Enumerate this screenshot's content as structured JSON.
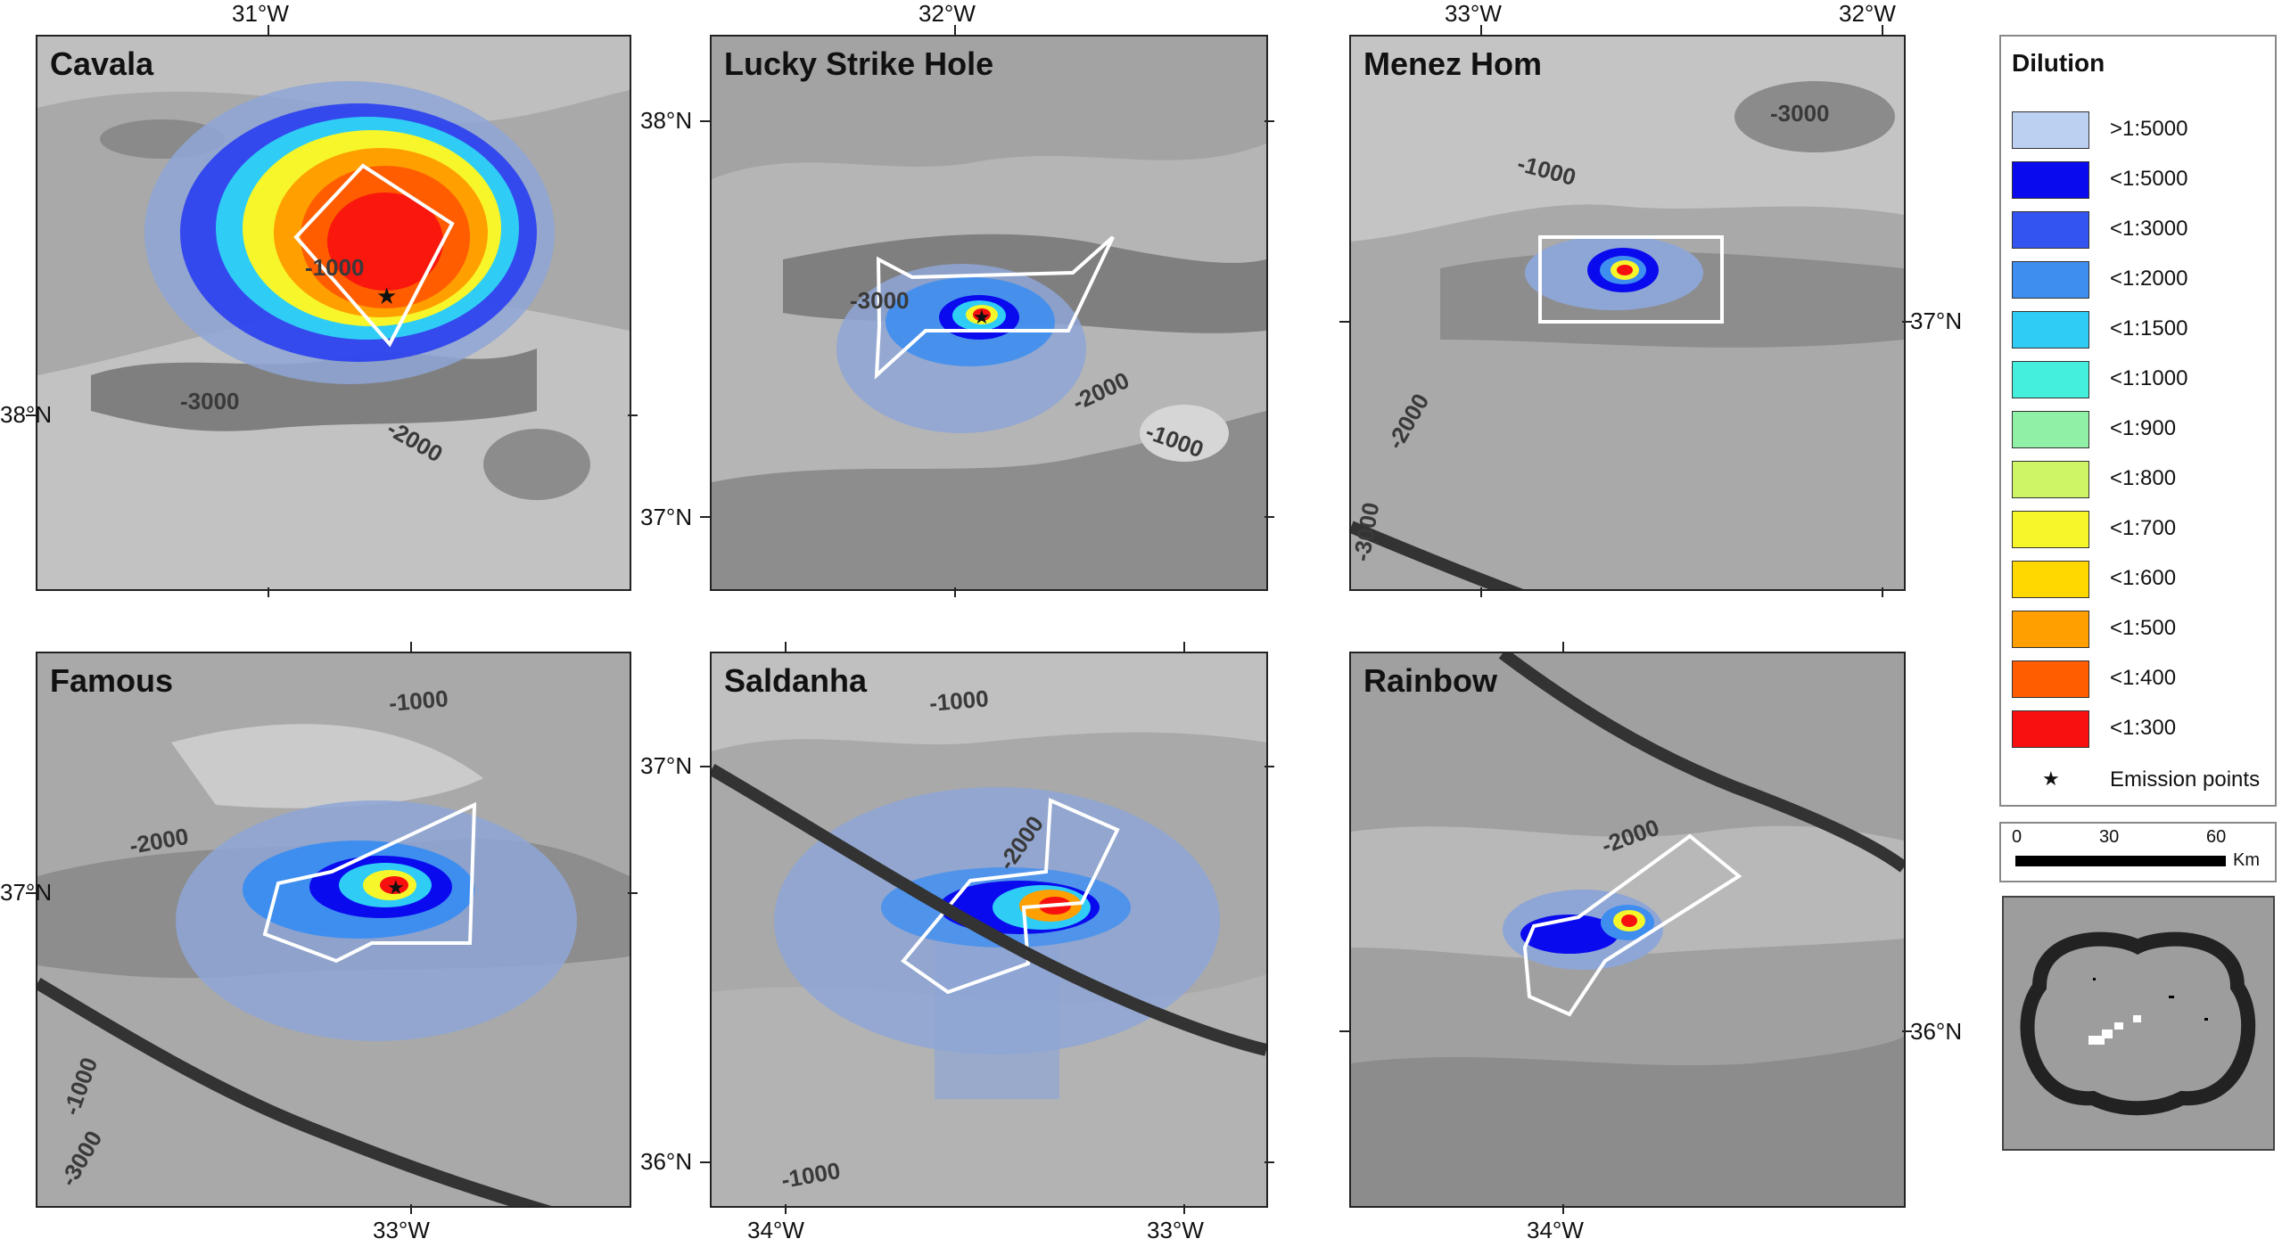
{
  "panels": [
    {
      "id": "cavala",
      "title": "Cavala",
      "top_ticks": [
        "31°W"
      ],
      "bottom_ticks": [],
      "left_ticks": [
        "38°N"
      ],
      "right_ticks": [],
      "contours": [
        "-1000",
        "-3000",
        "-2000"
      ]
    },
    {
      "id": "lucky",
      "title": "Lucky Strike Hole",
      "top_ticks": [
        "32°W"
      ],
      "bottom_ticks": [],
      "left_ticks": [
        "38°N",
        "37°N"
      ],
      "right_ticks": [],
      "contours": [
        "-3000",
        "-2000",
        "-1000"
      ]
    },
    {
      "id": "menez",
      "title": "Menez Hom",
      "top_ticks": [
        "33°W",
        "32°W"
      ],
      "bottom_ticks": [],
      "left_ticks": [],
      "right_ticks": [
        "37°N"
      ],
      "contours": [
        "-3000",
        "-1000",
        "-2000",
        "-3000"
      ]
    },
    {
      "id": "famous",
      "title": "Famous",
      "top_ticks": [],
      "bottom_ticks": [
        "33°W"
      ],
      "left_ticks": [
        "37°N"
      ],
      "right_ticks": [],
      "contours": [
        "-1000",
        "-2000",
        "-1000",
        "-3000"
      ]
    },
    {
      "id": "saldanha",
      "title": "Saldanha",
      "top_ticks": [],
      "bottom_ticks": [
        "34°W",
        "33°W"
      ],
      "left_ticks": [
        "37°N",
        "36°N"
      ],
      "right_ticks": [],
      "contours": [
        "-1000",
        "-2000",
        "-1000"
      ]
    },
    {
      "id": "rainbow",
      "title": "Rainbow",
      "top_ticks": [],
      "bottom_ticks": [
        "34°W"
      ],
      "left_ticks": [],
      "right_ticks": [
        "36°N"
      ],
      "contours": [
        "-2000"
      ]
    }
  ],
  "legend": {
    "title": "Dilution",
    "items": [
      {
        "label": ">1:5000",
        "color": "#bcd0f2"
      },
      {
        "label": "<1:5000",
        "color": "#0a0aee"
      },
      {
        "label": "<1:3000",
        "color": "#3354f0"
      },
      {
        "label": "<1:2000",
        "color": "#3e8ef0"
      },
      {
        "label": "<1:1500",
        "color": "#2fcdf5"
      },
      {
        "label": "<1:1000",
        "color": "#44f0dd"
      },
      {
        "label": "<1:900",
        "color": "#90f0a6"
      },
      {
        "label": "<1:800",
        "color": "#cef566"
      },
      {
        "label": "<1:700",
        "color": "#f6f62a"
      },
      {
        "label": "<1:600",
        "color": "#ffd800"
      },
      {
        "label": "<1:500",
        "color": "#ff9f00"
      },
      {
        "label": "<1:400",
        "color": "#ff5d00"
      },
      {
        "label": "<1:300",
        "color": "#f81010"
      }
    ],
    "emission_label": "Emission points",
    "emission_icon": "star-icon"
  },
  "scale_bar": {
    "ticks": [
      "0",
      "30",
      "60"
    ],
    "unit": "Km"
  }
}
